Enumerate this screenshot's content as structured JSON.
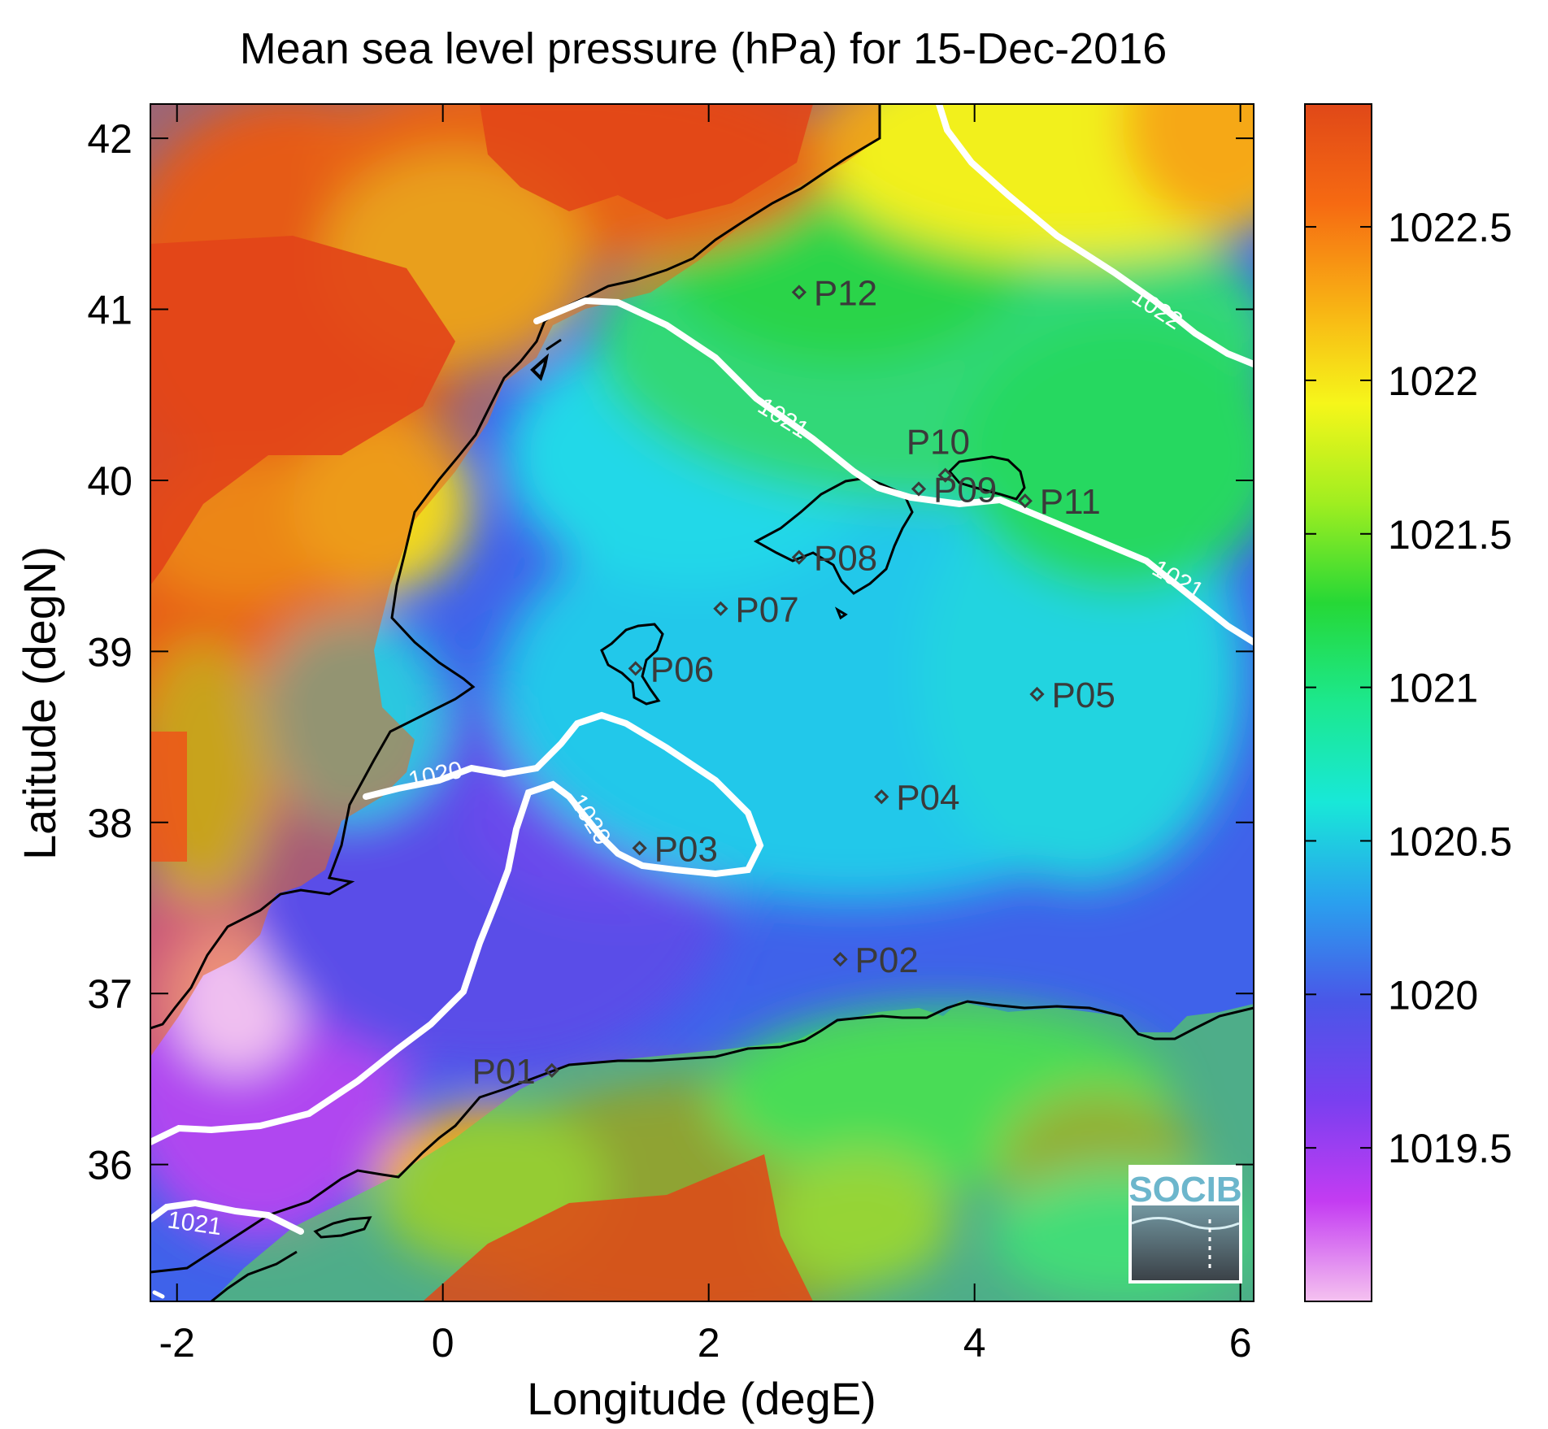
{
  "title": "Mean sea level pressure (hPa) for 15-Dec-2016",
  "xlabel": "Longitude (degE)",
  "ylabel": "Latitude (degN)",
  "map": {
    "lon_range": [
      -2.2,
      6.1
    ],
    "lat_range": [
      35.2,
      42.2
    ],
    "x_ticks": [
      {
        "value": -2,
        "label": "-2"
      },
      {
        "value": 0,
        "label": "0"
      },
      {
        "value": 2,
        "label": "2"
      },
      {
        "value": 4,
        "label": "4"
      },
      {
        "value": 6,
        "label": "6"
      }
    ],
    "y_ticks": [
      {
        "value": 36,
        "label": "36"
      },
      {
        "value": 37,
        "label": "37"
      },
      {
        "value": 38,
        "label": "38"
      },
      {
        "value": 39,
        "label": "39"
      },
      {
        "value": 40,
        "label": "40"
      },
      {
        "value": 41,
        "label": "41"
      },
      {
        "value": 42,
        "label": "42"
      }
    ]
  },
  "colorbar": {
    "range": [
      1019.0,
      1022.9
    ],
    "ticks": [
      {
        "value": 1019.5,
        "label": "1019.5"
      },
      {
        "value": 1020,
        "label": "1020"
      },
      {
        "value": 1020.5,
        "label": "1020.5"
      },
      {
        "value": 1021,
        "label": "1021"
      },
      {
        "value": 1021.5,
        "label": "1021.5"
      },
      {
        "value": 1022,
        "label": "1022"
      },
      {
        "value": 1022.5,
        "label": "1022.5"
      }
    ],
    "colors": [
      "#f5c2f0",
      "#c43cf2",
      "#7a3ff0",
      "#4a56e8",
      "#2aa0ee",
      "#18e8d8",
      "#1ce88e",
      "#26d836",
      "#a0ee20",
      "#f6f61a",
      "#f8b014",
      "#f66a12",
      "#e04818"
    ]
  },
  "stations": [
    {
      "name": "P01",
      "lon": 0.82,
      "lat": 36.55
    },
    {
      "name": "P02",
      "lon": 2.99,
      "lat": 37.2
    },
    {
      "name": "P03",
      "lon": 1.48,
      "lat": 37.85
    },
    {
      "name": "P04",
      "lon": 3.3,
      "lat": 38.15
    },
    {
      "name": "P05",
      "lon": 4.47,
      "lat": 38.75
    },
    {
      "name": "P06",
      "lon": 1.45,
      "lat": 38.9
    },
    {
      "name": "P07",
      "lon": 2.09,
      "lat": 39.25
    },
    {
      "name": "P08",
      "lon": 2.68,
      "lat": 39.55
    },
    {
      "name": "P09",
      "lon": 3.58,
      "lat": 39.95
    },
    {
      "name": "P10",
      "lon": 3.78,
      "lat": 40.03
    },
    {
      "name": "P11",
      "lon": 4.38,
      "lat": 39.88
    },
    {
      "name": "P12",
      "lon": 2.68,
      "lat": 41.1
    }
  ],
  "contour_labels": [
    "1022",
    "1021",
    "1021",
    "1020",
    "1020",
    "1021"
  ],
  "logo_text": "SOCIB"
}
